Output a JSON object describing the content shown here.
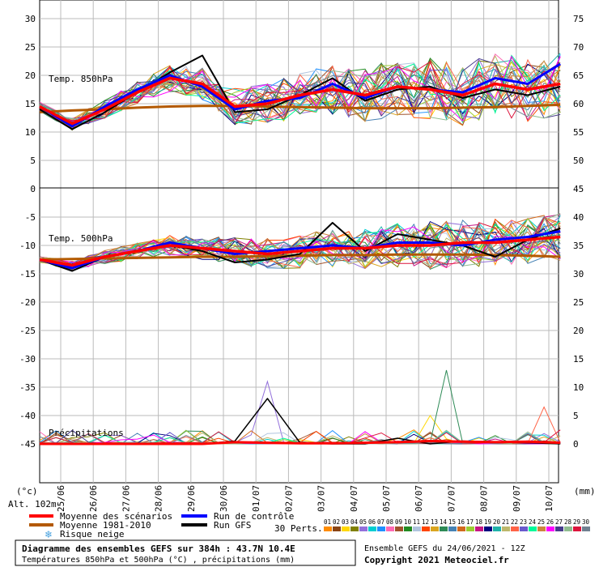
{
  "chart_data": {
    "type": "line",
    "days": [
      "25/06",
      "26/06",
      "27/06",
      "28/06",
      "29/06",
      "30/06",
      "01/07",
      "02/07",
      "03/07",
      "04/07",
      "05/07",
      "06/07",
      "07/07",
      "08/07",
      "09/07",
      "10/07"
    ],
    "panels": [
      {
        "label": "Temp. 850hPa",
        "left_ticks": [
          "30",
          "25",
          "20",
          "15",
          "10",
          "5",
          "0"
        ],
        "right_ticks": [
          "75",
          "70",
          "65",
          "60",
          "55",
          "50",
          "45"
        ],
        "ylim": [
          0,
          30
        ]
      },
      {
        "label": "Temp. 500hPa",
        "left_ticks": [
          "-5",
          "-10",
          "-15",
          "-20",
          "-25",
          "-30",
          "-35",
          "-40",
          "-45"
        ],
        "right_ticks": [
          "40",
          "35",
          "30",
          "25",
          "20",
          "15",
          "10",
          "5",
          "0"
        ],
        "ylim": [
          -50,
          0
        ]
      },
      {
        "label": "Précipitations",
        "unit": "mm"
      }
    ],
    "series": [
      {
        "name": "Moyenne des scénarios",
        "color": "#ff0000",
        "t850": [
          14.5,
          11.5,
          14,
          17,
          19.5,
          18.5,
          14.5,
          15,
          16.5,
          17.5,
          16.5,
          18,
          17.5,
          16.5,
          18.5,
          17.5,
          18.5
        ],
        "t500": [
          -12.5,
          -13.5,
          -12,
          -11,
          -10,
          -10.5,
          -11,
          -11.5,
          -11,
          -10.5,
          -10.5,
          -10,
          -10,
          -9.5,
          -9.5,
          -9,
          -8.5
        ],
        "precip": [
          0,
          0,
          0,
          0,
          0,
          0,
          0.3,
          0.2,
          0.1,
          0.1,
          0.2,
          0.3,
          0.5,
          0.4,
          0.3,
          0.4,
          0.2
        ]
      },
      {
        "name": "Moyenne 1981-2010",
        "color": "#b35900",
        "t850": [
          13.5,
          13.8,
          14,
          14.3,
          14.5,
          14.6,
          14.6,
          14.5,
          14.4,
          14.3,
          14.2,
          14.2,
          14.2,
          14.3,
          14.4,
          14.6,
          14.8
        ],
        "t500": [
          -12.5,
          -12.4,
          -12.3,
          -12.2,
          -12.1,
          -12,
          -12,
          -11.9,
          -11.8,
          -11.7,
          -11.7,
          -11.6,
          -11.6,
          -11.6,
          -11.7,
          -11.8,
          -12
        ]
      },
      {
        "name": "Run de contrôle",
        "color": "#0000ff",
        "t850": [
          14.5,
          11,
          14.5,
          17.5,
          20,
          18,
          14,
          15.5,
          16,
          18.5,
          16,
          18,
          17.5,
          17,
          19.5,
          18.5,
          22
        ],
        "t500": [
          -12.5,
          -14,
          -12,
          -11,
          -9.5,
          -10.5,
          -11.5,
          -11,
          -10.5,
          -10,
          -10.5,
          -9.5,
          -9.5,
          -10,
          -9,
          -8.5,
          -7.5
        ]
      },
      {
        "name": "Run GFS",
        "color": "#000000",
        "t850": [
          14,
          10.5,
          13.5,
          17,
          20.5,
          23.5,
          13.5,
          14,
          16.5,
          19.5,
          15.5,
          17.5,
          18,
          16,
          17.5,
          16.5,
          18
        ],
        "t500": [
          -12.5,
          -14.5,
          -12,
          -11,
          -10,
          -11,
          -13,
          -12.5,
          -11.5,
          -6,
          -11,
          -8,
          -9,
          -10,
          -12,
          -9,
          -7
        ],
        "precip": [
          0,
          0,
          0,
          0,
          0,
          0,
          0.5,
          8,
          0.2,
          0,
          0,
          1,
          0,
          0.5,
          0.3,
          0.2,
          0
        ]
      }
    ],
    "snow_risk_label": "Risque neige",
    "perts_label": "30 Perts.",
    "pert_ids": [
      "01",
      "02",
      "03",
      "04",
      "05",
      "06",
      "07",
      "08",
      "09",
      "10",
      "11",
      "12",
      "13",
      "14",
      "15",
      "16",
      "17",
      "18",
      "19",
      "20",
      "21",
      "22",
      "23",
      "24",
      "25",
      "26",
      "27",
      "28",
      "29",
      "30"
    ],
    "pert_colors": [
      "#ff8c00",
      "#8b4513",
      "#ffd700",
      "#808000",
      "#9370db",
      "#00ced1",
      "#1e90ff",
      "#ff69b4",
      "#a0522d",
      "#228b22",
      "#b0c4de",
      "#ff4500",
      "#daa520",
      "#2e8b57",
      "#4682b4",
      "#d2691e",
      "#9acd32",
      "#c71585",
      "#000080",
      "#20b2aa",
      "#bdb76b",
      "#ff6347",
      "#6a5acd",
      "#00fa9a",
      "#cd853f",
      "#ff00ff",
      "#483d8b",
      "#8fbc8f",
      "#dc143c",
      "#708090"
    ]
  },
  "axes": {
    "left_unit": "(°c)",
    "right_unit": "(mm)",
    "altitude": "Alt. 102m"
  },
  "footer": {
    "title_line1": "Diagramme des ensembles GEFS sur 384h : 43.7N 10.4E",
    "title_line2": "Températures 850hPa et 500hPa (°C) , précipitations (mm)",
    "run_info": "Ensemble GEFS du 24/06/2021 - 12Z",
    "copyright": "Copyright 2021 Meteociel.fr"
  },
  "colors": {
    "grid": "#bbbbbb",
    "mean": "#ff0000",
    "clim": "#b35900",
    "control": "#0000ff",
    "gfs": "#000000",
    "snow": "#4aa3df"
  }
}
